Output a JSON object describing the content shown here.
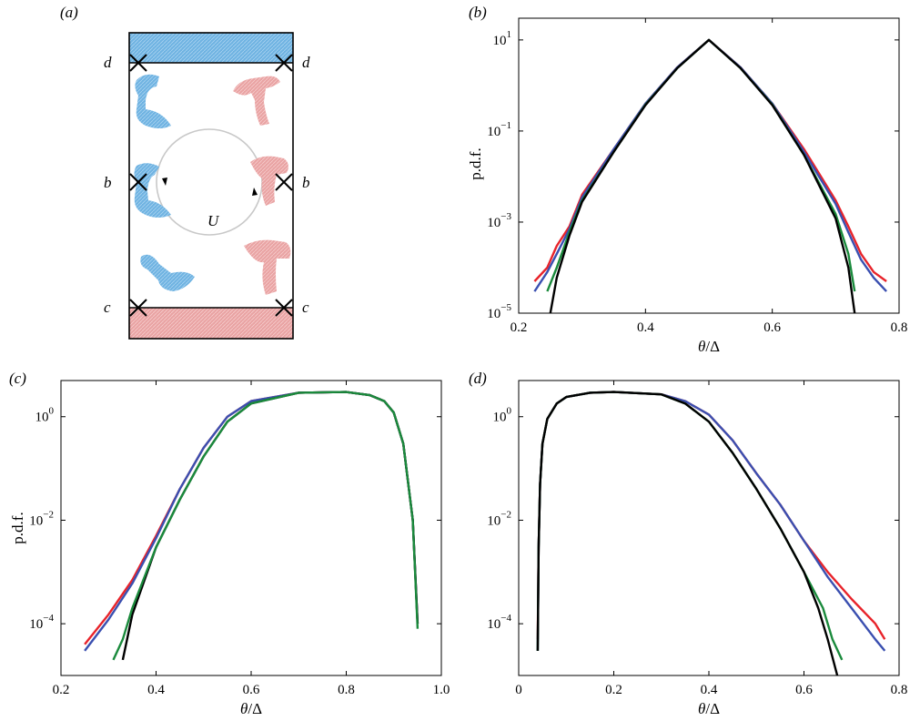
{
  "panels": {
    "a": {
      "tag": "(a)",
      "markers": {
        "d": "d",
        "b": "b",
        "c": "c",
        "U": "U"
      },
      "colors": {
        "cold": "#5fa9dc",
        "hot": "#e79c9c",
        "box": "#000000",
        "circle": "#c8c8c8"
      }
    },
    "b": {
      "tag": "(b)"
    },
    "c": {
      "tag": "(c)"
    },
    "d": {
      "tag": "(d)"
    }
  },
  "chart_data": [
    {
      "id": "b",
      "type": "line",
      "yscale": "log",
      "xlabel": "θ/Δ",
      "ylabel": "p.d.f.",
      "xlim": [
        0.2,
        0.8
      ],
      "ylim": [
        1e-05,
        30
      ],
      "xticks": [
        0.2,
        0.4,
        0.6,
        0.8
      ],
      "xtick_labels": [
        "0.2",
        "0.4",
        "0.6",
        "0.8"
      ],
      "yticks": [
        1e-05,
        0.001,
        0.1,
        10
      ],
      "ytick_labels": [
        [
          "10",
          "−5"
        ],
        [
          "10",
          "−3"
        ],
        [
          "10",
          "−1"
        ],
        [
          "10",
          "1"
        ]
      ],
      "series": [
        {
          "color": "#e8232a",
          "x": [
            0.225,
            0.245,
            0.26,
            0.28,
            0.3,
            0.35,
            0.4,
            0.45,
            0.5,
            0.55,
            0.6,
            0.65,
            0.7,
            0.72,
            0.74,
            0.76,
            0.78
          ],
          "y": [
            5e-05,
            0.0001,
            0.0003,
            0.0008,
            0.004,
            0.04,
            0.4,
            2.5,
            10,
            2.5,
            0.4,
            0.04,
            0.003,
            0.0008,
            0.0002,
            8e-05,
            5e-05
          ]
        },
        {
          "color": "#3a4fb0",
          "x": [
            0.225,
            0.245,
            0.26,
            0.28,
            0.3,
            0.35,
            0.4,
            0.45,
            0.5,
            0.55,
            0.6,
            0.65,
            0.7,
            0.72,
            0.74,
            0.76,
            0.78
          ],
          "y": [
            3e-05,
            8e-05,
            0.0002,
            0.0007,
            0.0035,
            0.04,
            0.4,
            2.5,
            10,
            2.5,
            0.4,
            0.035,
            0.0025,
            0.0006,
            0.00015,
            6e-05,
            3e-05
          ]
        },
        {
          "color": "#1a8a3c",
          "x": [
            0.245,
            0.26,
            0.28,
            0.3,
            0.35,
            0.4,
            0.45,
            0.5,
            0.55,
            0.6,
            0.65,
            0.7,
            0.72,
            0.73
          ],
          "y": [
            3e-05,
            0.0001,
            0.0006,
            0.003,
            0.035,
            0.38,
            2.4,
            10,
            2.4,
            0.38,
            0.03,
            0.0015,
            0.0002,
            3e-05
          ]
        },
        {
          "color": "#000000",
          "x": [
            0.25,
            0.26,
            0.28,
            0.3,
            0.35,
            0.4,
            0.45,
            0.5,
            0.55,
            0.6,
            0.65,
            0.7,
            0.72,
            0.73
          ],
          "y": [
            1e-05,
            6e-05,
            0.0005,
            0.0028,
            0.035,
            0.37,
            2.4,
            10,
            2.4,
            0.37,
            0.03,
            0.0012,
            0.0001,
            1e-05
          ]
        }
      ]
    },
    {
      "id": "c",
      "type": "line",
      "yscale": "log",
      "xlabel": "θ/Δ",
      "ylabel": "p.d.f.",
      "xlim": [
        0.2,
        1.0
      ],
      "ylim": [
        1e-05,
        5
      ],
      "xticks": [
        0.2,
        0.4,
        0.6,
        0.8,
        1.0
      ],
      "xtick_labels": [
        "0.2",
        "0.4",
        "0.6",
        "0.8",
        "1.0"
      ],
      "yticks": [
        0.0001,
        0.01,
        1
      ],
      "ytick_labels": [
        [
          "10",
          "−4"
        ],
        [
          "10",
          "−2"
        ],
        [
          "10",
          "0"
        ]
      ],
      "series": [
        {
          "color": "#e8232a",
          "x": [
            0.25,
            0.3,
            0.35,
            0.4,
            0.45,
            0.5,
            0.55,
            0.6,
            0.7,
            0.8,
            0.85,
            0.88,
            0.9,
            0.92,
            0.94,
            0.95
          ],
          "y": [
            4e-05,
            0.00015,
            0.0007,
            0.005,
            0.04,
            0.25,
            1.0,
            2.0,
            2.9,
            3.0,
            2.6,
            2.0,
            1.2,
            0.3,
            0.01,
            0.0001
          ]
        },
        {
          "color": "#3a4fb0",
          "x": [
            0.25,
            0.3,
            0.35,
            0.4,
            0.45,
            0.5,
            0.55,
            0.6,
            0.7,
            0.8,
            0.85,
            0.88,
            0.9,
            0.92,
            0.94,
            0.95
          ],
          "y": [
            3e-05,
            0.00012,
            0.0006,
            0.0045,
            0.04,
            0.25,
            1.0,
            2.0,
            2.9,
            3.0,
            2.6,
            2.0,
            1.2,
            0.3,
            0.01,
            0.0001
          ]
        },
        {
          "color": "#000000",
          "x": [
            0.33,
            0.35,
            0.4,
            0.45,
            0.5,
            0.55,
            0.6,
            0.7,
            0.8,
            0.85,
            0.88,
            0.9,
            0.92,
            0.94,
            0.95
          ],
          "y": [
            2e-05,
            0.00015,
            0.003,
            0.025,
            0.17,
            0.8,
            1.8,
            2.9,
            3.0,
            2.6,
            2.0,
            1.2,
            0.3,
            0.01,
            0.0001
          ]
        },
        {
          "color": "#1a8a3c",
          "x": [
            0.31,
            0.33,
            0.35,
            0.4,
            0.45,
            0.5,
            0.55,
            0.6,
            0.7,
            0.8,
            0.85,
            0.88,
            0.9,
            0.92,
            0.94,
            0.95
          ],
          "y": [
            2e-05,
            5e-05,
            0.0002,
            0.003,
            0.025,
            0.17,
            0.8,
            1.8,
            2.9,
            3.0,
            2.6,
            2.0,
            1.2,
            0.3,
            0.01,
            8e-05
          ]
        }
      ]
    },
    {
      "id": "d",
      "type": "line",
      "yscale": "log",
      "xlabel": "θ/Δ",
      "ylabel": "",
      "xlim": [
        0.0,
        0.8
      ],
      "ylim": [
        1e-05,
        5
      ],
      "xticks": [
        0,
        0.2,
        0.4,
        0.6,
        0.8
      ],
      "xtick_labels": [
        "0",
        "0.2",
        "0.4",
        "0.6",
        "0.8"
      ],
      "yticks": [
        0.0001,
        0.01,
        1
      ],
      "ytick_labels": [
        [
          "10",
          "−4"
        ],
        [
          "10",
          "−2"
        ],
        [
          "10",
          "0"
        ]
      ],
      "series": [
        {
          "color": "#e8232a",
          "x": [
            0.04,
            0.042,
            0.045,
            0.05,
            0.06,
            0.08,
            0.1,
            0.15,
            0.2,
            0.3,
            0.35,
            0.4,
            0.45,
            0.5,
            0.55,
            0.6,
            0.65,
            0.7,
            0.75,
            0.77
          ],
          "y": [
            5e-05,
            0.003,
            0.05,
            0.3,
            0.9,
            1.8,
            2.4,
            2.9,
            3.0,
            2.7,
            2.0,
            1.1,
            0.35,
            0.08,
            0.02,
            0.004,
            0.001,
            0.0003,
            0.0001,
            5e-05
          ]
        },
        {
          "color": "#3a4fb0",
          "x": [
            0.04,
            0.042,
            0.045,
            0.05,
            0.06,
            0.08,
            0.1,
            0.15,
            0.2,
            0.3,
            0.35,
            0.4,
            0.45,
            0.5,
            0.55,
            0.6,
            0.65,
            0.7,
            0.75,
            0.77
          ],
          "y": [
            3e-05,
            0.003,
            0.05,
            0.3,
            0.9,
            1.8,
            2.4,
            2.9,
            3.0,
            2.7,
            2.0,
            1.1,
            0.35,
            0.08,
            0.02,
            0.004,
            0.0008,
            0.0002,
            5e-05,
            3e-05
          ]
        },
        {
          "color": "#1a8a3c",
          "x": [
            0.04,
            0.042,
            0.045,
            0.05,
            0.06,
            0.08,
            0.1,
            0.15,
            0.2,
            0.3,
            0.35,
            0.4,
            0.45,
            0.5,
            0.55,
            0.6,
            0.64,
            0.66,
            0.68
          ],
          "y": [
            3e-05,
            0.003,
            0.05,
            0.3,
            0.9,
            1.8,
            2.4,
            2.9,
            3.0,
            2.7,
            1.8,
            0.8,
            0.2,
            0.04,
            0.007,
            0.001,
            0.0002,
            5e-05,
            2e-05
          ]
        },
        {
          "color": "#000000",
          "x": [
            0.04,
            0.042,
            0.045,
            0.05,
            0.06,
            0.08,
            0.1,
            0.15,
            0.2,
            0.3,
            0.35,
            0.4,
            0.45,
            0.5,
            0.55,
            0.6,
            0.63,
            0.65,
            0.67
          ],
          "y": [
            3e-05,
            0.003,
            0.05,
            0.3,
            0.9,
            1.8,
            2.4,
            2.9,
            3.0,
            2.7,
            1.8,
            0.8,
            0.2,
            0.04,
            0.007,
            0.001,
            0.0002,
            5e-05,
            1e-05
          ]
        }
      ]
    }
  ]
}
